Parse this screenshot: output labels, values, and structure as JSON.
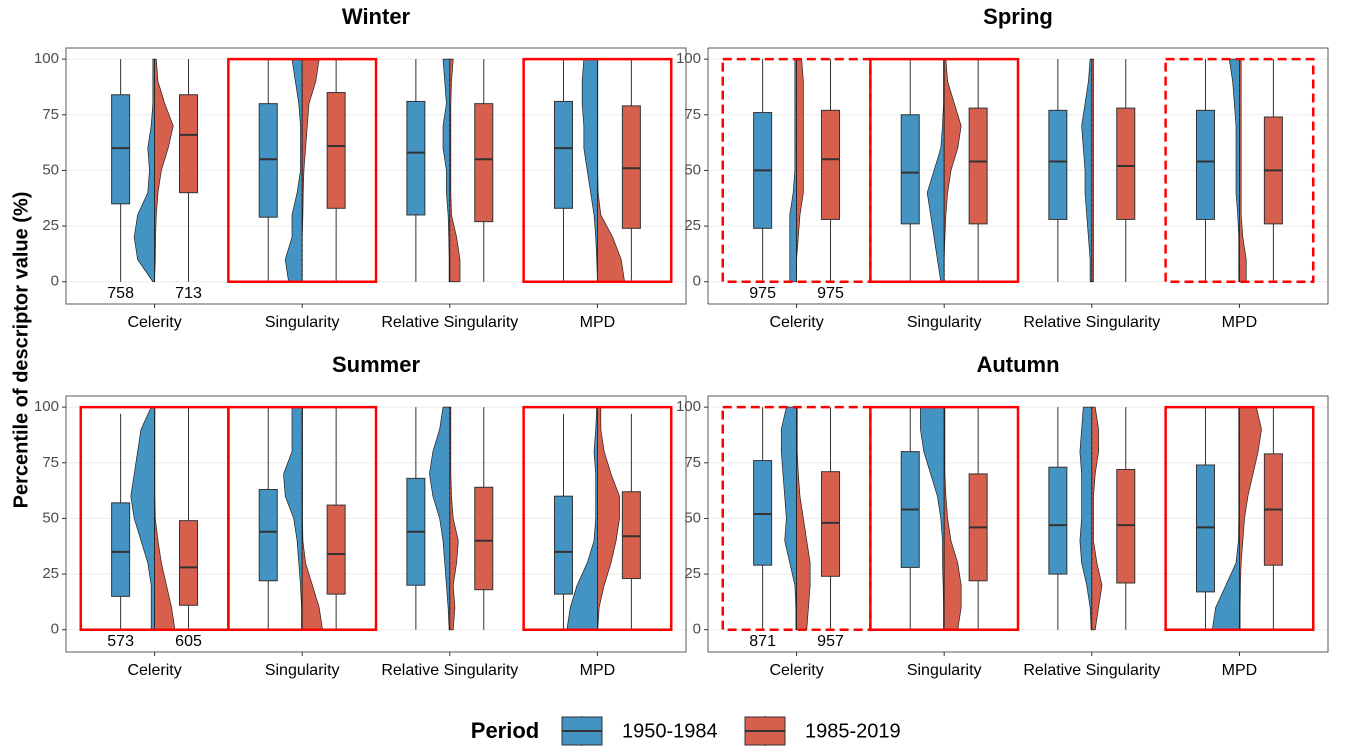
{
  "chart_data": [
    {
      "type": "box",
      "title": "Winter",
      "categories": [
        "Celerity",
        "Singularity",
        "Relative Singularity",
        "MPD"
      ],
      "ylim": [
        -10,
        105
      ],
      "yticks": [
        0,
        25,
        50,
        75,
        100
      ],
      "grid": true,
      "highlight": [
        "none",
        "solid",
        "none",
        "solid"
      ],
      "series": [
        {
          "min": [
            0,
            0,
            0,
            0
          ],
          "q1": [
            35,
            29,
            30,
            33
          ],
          "median": [
            60,
            55,
            58,
            60
          ],
          "q3": [
            84,
            80,
            81,
            81
          ],
          "max": [
            100,
            100,
            100,
            100
          ],
          "n": [
            758,
            null,
            null,
            null
          ],
          "density": [
            [
              0.05,
              0.5,
              0.6,
              0.5,
              0.2,
              0.15,
              0.2,
              0.1,
              0.05,
              0.05,
              0.05
            ],
            [
              0.4,
              0.5,
              0.3,
              0.3,
              0.15,
              0.05,
              0.05,
              0.05,
              0.1,
              0.2,
              0.3
            ],
            [
              0.02,
              0.02,
              0.03,
              0.05,
              0.1,
              0.1,
              0.2,
              0.2,
              0.1,
              0.15,
              0.2
            ],
            [
              0,
              0.02,
              0.05,
              0.1,
              0.2,
              0.3,
              0.4,
              0.4,
              0.45,
              0.45,
              0.4
            ]
          ]
        },
        {
          "min": [
            0,
            0,
            0,
            0
          ],
          "q1": [
            40,
            33,
            27,
            24
          ],
          "median": [
            66,
            61,
            55,
            51
          ],
          "q3": [
            84,
            85,
            80,
            79
          ],
          "max": [
            100,
            100,
            100,
            100
          ],
          "n": [
            713,
            null,
            null,
            null
          ],
          "density": [
            [
              0,
              0.02,
              0.03,
              0.05,
              0.1,
              0.2,
              0.4,
              0.55,
              0.3,
              0.1,
              0.05
            ],
            [
              0,
              0,
              0,
              0.02,
              0.03,
              0.05,
              0.1,
              0.15,
              0.2,
              0.4,
              0.5
            ],
            [
              0.3,
              0.3,
              0.2,
              0.05,
              0.03,
              0.03,
              0.03,
              0.03,
              0.03,
              0.05,
              0.1
            ],
            [
              0.8,
              0.7,
              0.45,
              0.1,
              0.02,
              0.01,
              0.01,
              0.01,
              0.01,
              0.01,
              0.01
            ]
          ]
        }
      ]
    },
    {
      "type": "box",
      "title": "Spring",
      "categories": [
        "Celerity",
        "Singularity",
        "Relative Singularity",
        "MPD"
      ],
      "ylim": [
        -10,
        105
      ],
      "yticks": [
        0,
        25,
        50,
        75,
        100
      ],
      "grid": true,
      "highlight": [
        "dashed",
        "solid",
        "none",
        "dashed"
      ],
      "series": [
        {
          "min": [
            0,
            0,
            0,
            0
          ],
          "q1": [
            24,
            26,
            28,
            28
          ],
          "median": [
            50,
            49,
            54,
            54
          ],
          "q3": [
            76,
            75,
            77,
            77
          ],
          "max": [
            100,
            100,
            100,
            100
          ],
          "n": [
            975,
            null,
            null,
            null
          ],
          "density": [
            [
              0.2,
              0.2,
              0.2,
              0.2,
              0.1,
              0.05,
              0.05,
              0.05,
              0.05,
              0.05,
              0.05
            ],
            [
              0.1,
              0.2,
              0.3,
              0.4,
              0.5,
              0.3,
              0.1,
              0.05,
              0.02,
              0.02,
              0.02
            ],
            [
              0.05,
              0.05,
              0.1,
              0.15,
              0.2,
              0.2,
              0.25,
              0.3,
              0.2,
              0.1,
              0.05
            ],
            [
              0.02,
              0.02,
              0.02,
              0.05,
              0.1,
              0.1,
              0.1,
              0.1,
              0.15,
              0.2,
              0.3
            ]
          ]
        },
        {
          "min": [
            0,
            0,
            0,
            0
          ],
          "q1": [
            28,
            26,
            28,
            26
          ],
          "median": [
            55,
            54,
            52,
            50
          ],
          "q3": [
            77,
            78,
            78,
            74
          ],
          "max": [
            100,
            100,
            100,
            100
          ],
          "n": [
            975,
            null,
            null,
            null
          ],
          "density": [
            [
              0,
              0,
              0.05,
              0.1,
              0.2,
              0.2,
              0.2,
              0.2,
              0.2,
              0.2,
              0.15
            ],
            [
              0,
              0,
              0.02,
              0.05,
              0.1,
              0.2,
              0.4,
              0.5,
              0.3,
              0.1,
              0.05
            ],
            [
              0.05,
              0.05,
              0.05,
              0.05,
              0.05,
              0.05,
              0.05,
              0.05,
              0.05,
              0.05,
              0.05
            ],
            [
              0.2,
              0.2,
              0.1,
              0.05,
              0.05,
              0.05,
              0.05,
              0.05,
              0.05,
              0.05,
              0.05
            ]
          ]
        }
      ]
    },
    {
      "type": "box",
      "title": "Summer",
      "categories": [
        "Celerity",
        "Singularity",
        "Relative Singularity",
        "MPD"
      ],
      "ylim": [
        -10,
        105
      ],
      "yticks": [
        0,
        25,
        50,
        75,
        100
      ],
      "grid": true,
      "highlight": [
        "solid",
        "solid",
        "none",
        "solid"
      ],
      "series": [
        {
          "min": [
            0,
            0,
            0,
            0
          ],
          "q1": [
            15,
            22,
            20,
            16
          ],
          "median": [
            35,
            44,
            44,
            35
          ],
          "q3": [
            57,
            63,
            68,
            60
          ],
          "max": [
            97,
            100,
            100,
            97
          ],
          "n": [
            573,
            null,
            null,
            null
          ],
          "density": [
            [
              0.1,
              0.1,
              0.1,
              0.2,
              0.4,
              0.6,
              0.7,
              0.6,
              0.5,
              0.4,
              0.1
            ],
            [
              0.02,
              0.02,
              0.05,
              0.1,
              0.15,
              0.25,
              0.5,
              0.55,
              0.3,
              0.3,
              0.3
            ],
            [
              0.02,
              0.05,
              0.1,
              0.15,
              0.2,
              0.3,
              0.5,
              0.6,
              0.5,
              0.3,
              0.2
            ],
            [
              0.9,
              0.8,
              0.6,
              0.3,
              0.1,
              0.05,
              0.05,
              0.05,
              0.1,
              0.05,
              0.02
            ]
          ]
        },
        {
          "min": [
            0,
            0,
            0,
            0
          ],
          "q1": [
            11,
            16,
            18,
            23
          ],
          "median": [
            28,
            34,
            40,
            42
          ],
          "q3": [
            49,
            56,
            64,
            62
          ],
          "max": [
            100,
            100,
            100,
            97
          ],
          "n": [
            605,
            null,
            null,
            null
          ],
          "density": [
            [
              0.6,
              0.5,
              0.35,
              0.2,
              0.1,
              0.02,
              0.01,
              0.01,
              0.01,
              0.01,
              0.01
            ],
            [
              0.6,
              0.5,
              0.3,
              0.1,
              0.02,
              0.01,
              0.01,
              0.01,
              0.01,
              0.01,
              0.01
            ],
            [
              0.1,
              0.15,
              0.1,
              0.2,
              0.25,
              0.1,
              0.05,
              0.03,
              0.03,
              0.03,
              0.03
            ],
            [
              0.01,
              0.05,
              0.2,
              0.4,
              0.55,
              0.65,
              0.65,
              0.4,
              0.2,
              0.1,
              0.1
            ]
          ]
        }
      ]
    },
    {
      "type": "box",
      "title": "Autumn",
      "categories": [
        "Celerity",
        "Singularity",
        "Relative Singularity",
        "MPD"
      ],
      "ylim": [
        -10,
        105
      ],
      "yticks": [
        0,
        25,
        50,
        75,
        100
      ],
      "grid": true,
      "highlight": [
        "dashed",
        "solid",
        "none",
        "solid"
      ],
      "series": [
        {
          "min": [
            0,
            0,
            0,
            0
          ],
          "q1": [
            29,
            28,
            25,
            17
          ],
          "median": [
            52,
            54,
            47,
            46
          ],
          "q3": [
            76,
            80,
            73,
            74
          ],
          "max": [
            100,
            100,
            100,
            100
          ],
          "n": [
            871,
            null,
            null,
            null
          ],
          "density": [
            [
              0.02,
              0.02,
              0.05,
              0.2,
              0.35,
              0.3,
              0.35,
              0.4,
              0.45,
              0.45,
              0.3
            ],
            [
              0.02,
              0.02,
              0.03,
              0.05,
              0.05,
              0.1,
              0.2,
              0.4,
              0.6,
              0.7,
              0.7
            ],
            [
              0.02,
              0.05,
              0.15,
              0.3,
              0.35,
              0.3,
              0.3,
              0.3,
              0.35,
              0.3,
              0.25
            ],
            [
              0.8,
              0.7,
              0.4,
              0.1,
              0.03,
              0.02,
              0.02,
              0.02,
              0.02,
              0.02,
              0.02
            ]
          ]
        },
        {
          "min": [
            0,
            0,
            0,
            0
          ],
          "q1": [
            24,
            22,
            21,
            29
          ],
          "median": [
            48,
            46,
            47,
            54
          ],
          "q3": [
            71,
            70,
            72,
            79
          ],
          "max": [
            100,
            100,
            100,
            100
          ],
          "n": [
            957,
            null,
            null,
            null
          ],
          "density": [
            [
              0.3,
              0.35,
              0.4,
              0.4,
              0.3,
              0.2,
              0.1,
              0.05,
              0.02,
              0.02,
              0.02
            ],
            [
              0.4,
              0.5,
              0.5,
              0.4,
              0.2,
              0.1,
              0.05,
              0.02,
              0.02,
              0.02,
              0.02
            ],
            [
              0.1,
              0.2,
              0.3,
              0.15,
              0.05,
              0.05,
              0.05,
              0.1,
              0.2,
              0.2,
              0.1
            ],
            [
              0.02,
              0.02,
              0.03,
              0.05,
              0.1,
              0.15,
              0.25,
              0.4,
              0.55,
              0.65,
              0.5
            ]
          ]
        }
      ]
    }
  ],
  "ylabel": "Percentile of descriptor value (%)",
  "density_grid": [
    0,
    10,
    20,
    30,
    40,
    50,
    60,
    70,
    80,
    90,
    100
  ],
  "legend": {
    "title": "Period",
    "series": [
      {
        "name": "1950-1984",
        "color": "#4393c3"
      },
      {
        "name": "1985-2019",
        "color": "#d6604d"
      }
    ]
  }
}
